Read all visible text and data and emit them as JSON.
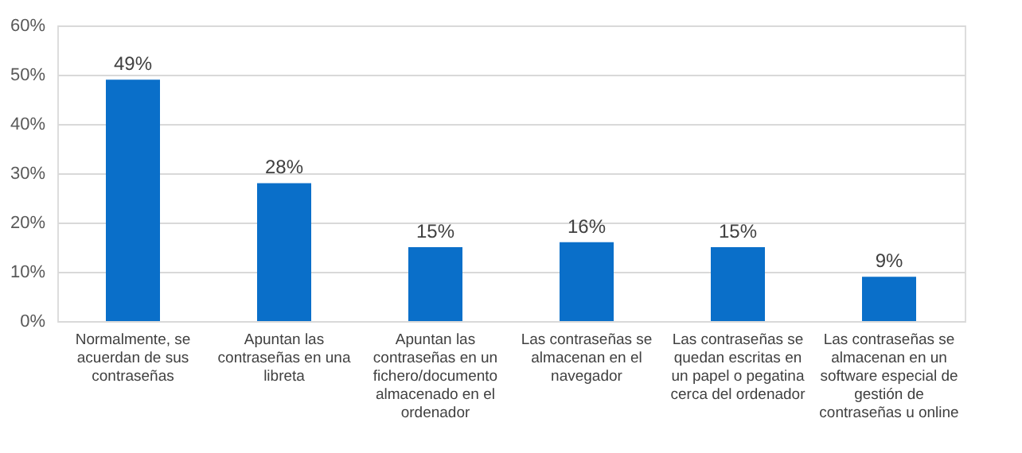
{
  "chart_data": {
    "type": "bar",
    "categories": [
      "Normalmente, se acuerdan de sus contraseñas",
      "Apuntan las contraseñas en una libreta",
      "Apuntan las contraseñas en un fichero/documento almacenado en el ordenador",
      "Las contraseñas se almacenan en el navegador",
      "Las contraseñas se quedan escritas en un papel o pegatina cerca del ordenador",
      "Las contraseñas se almacenan en un software especial de gestión de contraseñas u online"
    ],
    "values": [
      49,
      28,
      15,
      16,
      15,
      9
    ],
    "value_labels": [
      "49%",
      "28%",
      "15%",
      "16%",
      "15%",
      "9%"
    ],
    "color": "#0a6fc9",
    "ylim": [
      0,
      60
    ],
    "yticks": [
      {
        "value": 0,
        "label": "0%"
      },
      {
        "value": 10,
        "label": "10%"
      },
      {
        "value": 20,
        "label": "20%"
      },
      {
        "value": 30,
        "label": "30%"
      },
      {
        "value": 40,
        "label": "40%"
      },
      {
        "value": 50,
        "label": "50%"
      },
      {
        "value": 60,
        "label": "60%"
      }
    ],
    "grid": "y"
  }
}
